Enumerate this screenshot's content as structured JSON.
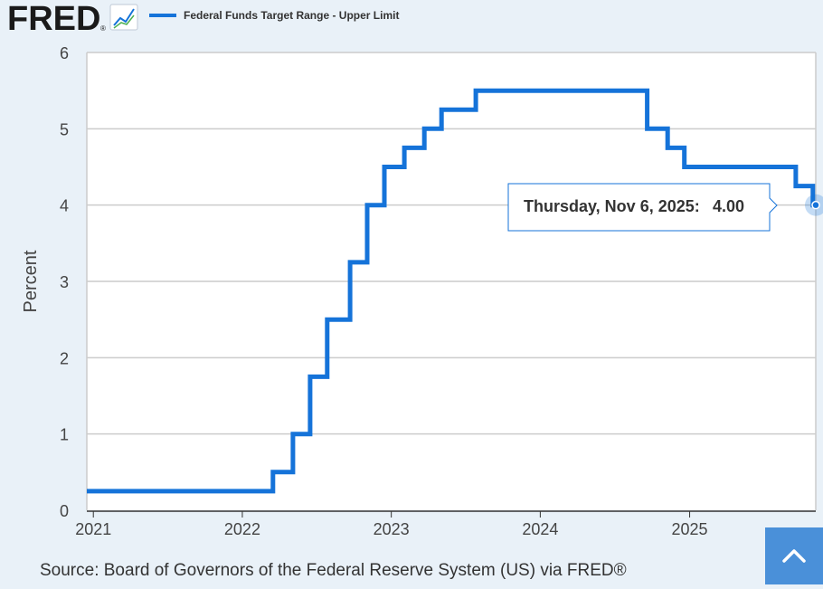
{
  "logo": {
    "text": "FRED",
    "mark": "®"
  },
  "icons": {
    "chart_icon": "line-chart-icon",
    "scroll_top": "chevron-up-icon"
  },
  "colors": {
    "series": "#1573d9",
    "grid": "#cccccc",
    "plot_bg": "#ffffff",
    "page_bg": "#e9f1f8",
    "scroll_button": "#4a90d9"
  },
  "source": "Source: Board of Governors of the Federal Reserve System (US) via FRED®",
  "tooltip": {
    "date": "Thursday, Nov 6, 2025:",
    "value": "4.00"
  },
  "chart_data": {
    "type": "line",
    "step": true,
    "ylabel": "Percent",
    "ylim": [
      0,
      6
    ],
    "yticks": [
      "0",
      "1",
      "2",
      "3",
      "4",
      "5",
      "6"
    ],
    "xlim": [
      "2020-12-16",
      "2025-11-06"
    ],
    "xticks": [
      "2021",
      "2022",
      "2023",
      "2024",
      "2025"
    ],
    "grid": true,
    "legend_position": "top-left",
    "series": [
      {
        "name": "Federal Funds Target Range - Upper Limit",
        "points": [
          [
            "2020-12-16",
            0.25
          ],
          [
            "2022-03-17",
            0.5
          ],
          [
            "2022-05-05",
            1.0
          ],
          [
            "2022-06-16",
            1.75
          ],
          [
            "2022-07-28",
            2.5
          ],
          [
            "2022-09-22",
            3.25
          ],
          [
            "2022-11-03",
            4.0
          ],
          [
            "2022-12-15",
            4.5
          ],
          [
            "2023-02-02",
            4.75
          ],
          [
            "2023-03-23",
            5.0
          ],
          [
            "2023-05-04",
            5.25
          ],
          [
            "2023-07-27",
            5.5
          ],
          [
            "2024-09-19",
            5.0
          ],
          [
            "2024-11-08",
            4.75
          ],
          [
            "2024-12-19",
            4.5
          ],
          [
            "2025-09-18",
            4.25
          ],
          [
            "2025-10-30",
            4.0
          ],
          [
            "2025-11-06",
            4.0
          ]
        ]
      }
    ]
  }
}
